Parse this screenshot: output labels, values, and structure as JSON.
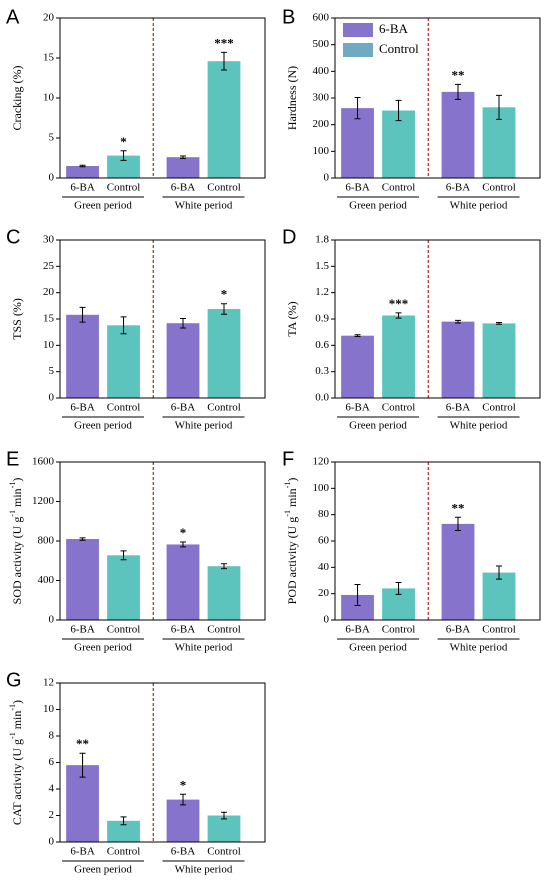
{
  "chart_data": [
    {
      "type": "bar",
      "panel": "A",
      "ylabel": "Cracking (%)",
      "categories": [
        "6-BA",
        "Control",
        "6-BA",
        "Control"
      ],
      "groups": [
        "Green period",
        "White period"
      ],
      "values": [
        1.5,
        2.8,
        2.6,
        14.6
      ],
      "errors": [
        0.1,
        0.6,
        0.15,
        1.1
      ],
      "significance": [
        null,
        "*",
        null,
        "***"
      ],
      "colors": [
        "#8673cc",
        "#5cc3bd"
      ],
      "ylim": [
        0,
        20
      ],
      "yticks": [
        0,
        5,
        10,
        15,
        20
      ]
    },
    {
      "type": "bar",
      "panel": "B",
      "ylabel": "Hardness (N)",
      "categories": [
        "6-BA",
        "Control",
        "6-BA",
        "Control"
      ],
      "groups": [
        "Green period",
        "White period"
      ],
      "values": [
        262,
        253,
        323,
        265
      ],
      "errors": [
        40,
        38,
        28,
        45
      ],
      "significance": [
        null,
        null,
        "**",
        null
      ],
      "colors": [
        "#8673cc",
        "#5cc3bd"
      ],
      "legend": [
        "6-BA",
        "Control"
      ],
      "legend_colors": [
        "#8673cc",
        "#6fa9c2"
      ],
      "ylim": [
        0,
        600
      ],
      "yticks": [
        0,
        100,
        200,
        300,
        400,
        500,
        600
      ]
    },
    {
      "type": "bar",
      "panel": "C",
      "ylabel": "TSS (%)",
      "categories": [
        "6-BA",
        "Control",
        "6-BA",
        "Control"
      ],
      "groups": [
        "Green period",
        "White period"
      ],
      "values": [
        15.8,
        13.8,
        14.2,
        16.9
      ],
      "errors": [
        1.4,
        1.6,
        0.9,
        1.0
      ],
      "significance": [
        null,
        null,
        null,
        "*"
      ],
      "colors": [
        "#8673cc",
        "#5cc3bd"
      ],
      "ylim": [
        0,
        30
      ],
      "yticks": [
        0,
        5,
        10,
        15,
        20,
        25,
        30
      ]
    },
    {
      "type": "bar",
      "panel": "D",
      "ylabel": "TA (%)",
      "categories": [
        "6-BA",
        "Control",
        "6-BA",
        "Control"
      ],
      "groups": [
        "Green period",
        "White period"
      ],
      "values": [
        0.71,
        0.94,
        0.87,
        0.85
      ],
      "errors": [
        0.01,
        0.03,
        0.015,
        0.01
      ],
      "significance": [
        null,
        "***",
        null,
        null
      ],
      "colors": [
        "#8673cc",
        "#5cc3bd"
      ],
      "ylim": [
        0,
        1.8
      ],
      "yticks": [
        {
          "value": 0,
          "label": "0.0"
        },
        0.3,
        0.6,
        0.9,
        1.2,
        1.5,
        1.8
      ]
    },
    {
      "type": "bar",
      "panel": "E",
      "ylabel": [
        "SOD activity (U g",
        "-1",
        " min",
        "-1",
        ")"
      ],
      "categories": [
        "6-BA",
        "Control",
        "6-BA",
        "Control"
      ],
      "groups": [
        "Green period",
        "White period"
      ],
      "values": [
        820,
        655,
        765,
        545
      ],
      "errors": [
        12,
        45,
        25,
        25
      ],
      "significance": [
        null,
        null,
        "*",
        null
      ],
      "colors": [
        "#8673cc",
        "#5cc3bd"
      ],
      "ylim": [
        0,
        1600
      ],
      "yticks": [
        0,
        400,
        800,
        1200,
        1600
      ]
    },
    {
      "type": "bar",
      "panel": "F",
      "ylabel": [
        "POD activity (U g",
        "-1",
        " min",
        "-1",
        ")"
      ],
      "categories": [
        "6-BA",
        "Control",
        "6-BA",
        "Control"
      ],
      "groups": [
        "Green period",
        "White period"
      ],
      "values": [
        19,
        24,
        73,
        36
      ],
      "errors": [
        8,
        4.5,
        5,
        5
      ],
      "significance": [
        null,
        null,
        "**",
        null
      ],
      "colors": [
        "#8673cc",
        "#5cc3bd"
      ],
      "ylim": [
        0,
        120
      ],
      "yticks": [
        0,
        20,
        40,
        60,
        80,
        100,
        120
      ]
    },
    {
      "type": "bar",
      "panel": "G",
      "ylabel": [
        "CAT activity (U g",
        "-1",
        " min",
        "-1",
        ")"
      ],
      "categories": [
        "6-BA",
        "Control",
        "6-BA",
        "Control"
      ],
      "groups": [
        "Green period",
        "White period"
      ],
      "values": [
        5.8,
        1.6,
        3.2,
        2.0
      ],
      "errors": [
        0.9,
        0.3,
        0.4,
        0.25
      ],
      "significance": [
        "**",
        null,
        "*",
        null
      ],
      "colors": [
        "#8673cc",
        "#5cc3bd"
      ],
      "ylim": [
        0,
        12
      ],
      "yticks": [
        0,
        2,
        4,
        6,
        8,
        10,
        12
      ]
    }
  ]
}
